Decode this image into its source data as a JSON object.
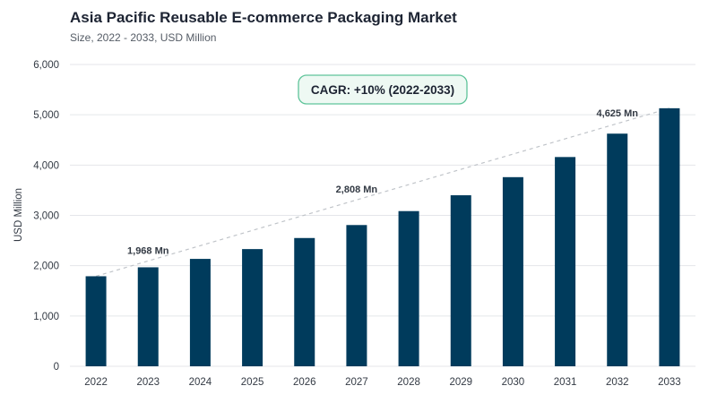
{
  "chart_data": {
    "type": "bar",
    "title": "Asia Pacific Reusable E-commerce Packaging Market",
    "subtitle": "Size, 2022 - 2033, USD Million",
    "ylabel": "USD Million",
    "xlabel": "",
    "ylim": [
      0,
      6000
    ],
    "yticks": [
      "0",
      "1,000",
      "2,000",
      "3,000",
      "4,000",
      "5,000",
      "6,000"
    ],
    "categories": [
      "2022",
      "2023",
      "2024",
      "2025",
      "2026",
      "2027",
      "2028",
      "2029",
      "2030",
      "2031",
      "2032",
      "2033"
    ],
    "values": [
      1790,
      1968,
      2135,
      2330,
      2550,
      2808,
      3085,
      3400,
      3760,
      4160,
      4625,
      5130
    ],
    "annotations": [
      {
        "category": "2023",
        "text": "1,968 Mn"
      },
      {
        "category": "2027",
        "text": "2,808 Mn"
      },
      {
        "category": "2032",
        "text": "4,625 Mn"
      }
    ],
    "cagr_label": "CAGR: +10% (2022-2033)",
    "grid": true,
    "trend_line": true,
    "colors": {
      "bar": "#003b5c",
      "grid": "#e4e6ea",
      "trend": "#bfc3c8",
      "cagr_border": "#5fc49a",
      "cagr_fill": "#eef9f3"
    }
  }
}
